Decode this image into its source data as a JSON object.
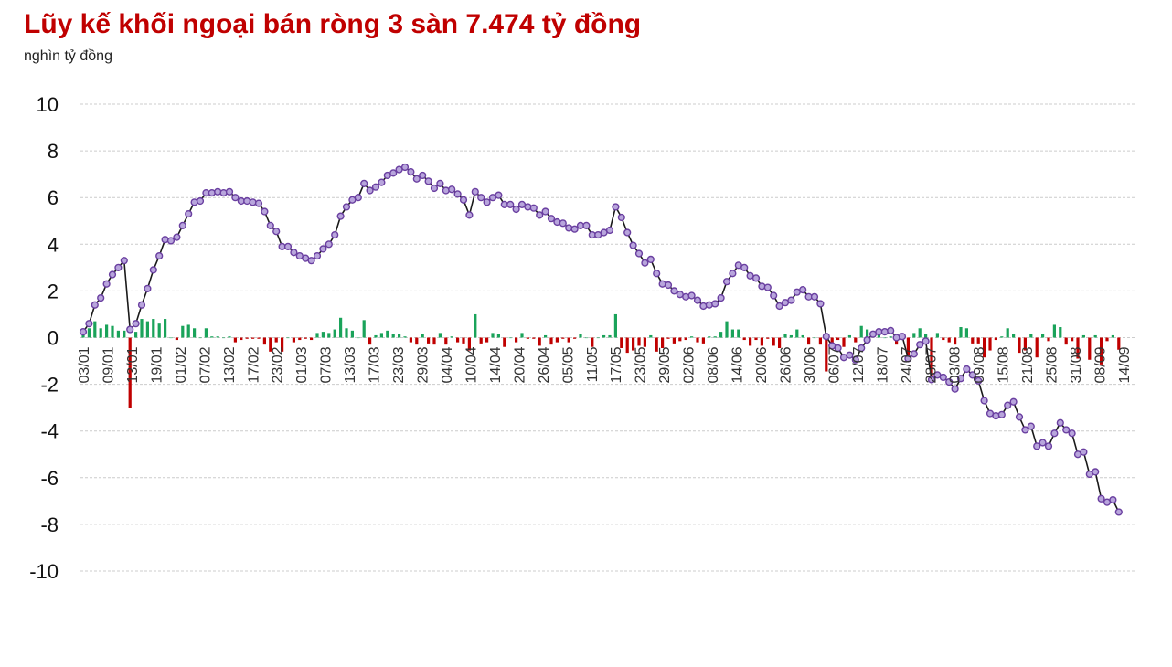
{
  "chart_data": {
    "type": "bar+line",
    "title": "Lũy kế khối ngoại bán ròng 3 sàn 7.474 tỷ đồng",
    "unit_label": "nghìn tỷ đồng",
    "ylim": [
      -10,
      10
    ],
    "yticks": [
      10,
      8,
      6,
      4,
      2,
      0,
      -2,
      -4,
      -6,
      -8,
      -10
    ],
    "grid": true,
    "legend": "none",
    "colors": {
      "line": "#1a1a1a",
      "marker_fill": "#b8a5dc",
      "marker_stroke": "#6a3fa0",
      "bar_positive": "#1aa35a",
      "bar_negative": "#c00000"
    },
    "x_labels": [
      "03/01",
      "09/01",
      "13/01",
      "19/01",
      "01/02",
      "07/02",
      "13/02",
      "17/02",
      "23/02",
      "01/03",
      "07/03",
      "13/03",
      "17/03",
      "23/03",
      "29/03",
      "04/04",
      "10/04",
      "14/04",
      "20/04",
      "26/04",
      "05/05",
      "11/05",
      "17/05",
      "23/05",
      "29/05",
      "02/06",
      "08/06",
      "14/06",
      "20/06",
      "26/06",
      "30/06",
      "06/07",
      "12/07",
      "18/07",
      "24/07",
      "28/07",
      "03/08",
      "09/08",
      "15/08",
      "21/08",
      "25/08",
      "31/08",
      "08/09",
      "14/09"
    ],
    "series": [
      {
        "name": "",
        "type": "line",
        "values": [
          0.25,
          0.6,
          1.4,
          1.7,
          2.3,
          2.7,
          3.0,
          3.3,
          0.35,
          0.6,
          1.4,
          2.1,
          2.9,
          3.5,
          4.2,
          4.15,
          4.3,
          4.8,
          5.3,
          5.8,
          5.85,
          6.2,
          6.2,
          6.25,
          6.2,
          6.25,
          6.0,
          5.85,
          5.85,
          5.8,
          5.75,
          5.4,
          4.8,
          4.55,
          3.9,
          3.9,
          3.65,
          3.5,
          3.4,
          3.3,
          3.5,
          3.8,
          4.0,
          4.4,
          5.2,
          5.6,
          5.9,
          6.0,
          6.6,
          6.3,
          6.45,
          6.65,
          6.95,
          7.05,
          7.2,
          7.3,
          7.1,
          6.8,
          6.95,
          6.7,
          6.4,
          6.6,
          6.3,
          6.35,
          6.15,
          5.9,
          5.25,
          6.25,
          6.0,
          5.8,
          6.0,
          6.1,
          5.7,
          5.7,
          5.5,
          5.7,
          5.6,
          5.55,
          5.25,
          5.4,
          5.1,
          4.95,
          4.9,
          4.7,
          4.65,
          4.8,
          4.8,
          4.4,
          4.4,
          4.5,
          4.6,
          5.6,
          5.15,
          4.5,
          3.95,
          3.6,
          3.2,
          3.35,
          2.75,
          2.3,
          2.25,
          2.0,
          1.85,
          1.75,
          1.8,
          1.6,
          1.35,
          1.4,
          1.45,
          1.7,
          2.4,
          2.75,
          3.1,
          3.0,
          2.65,
          2.55,
          2.2,
          2.15,
          1.8,
          1.35,
          1.5,
          1.6,
          1.95,
          2.05,
          1.75,
          1.75,
          1.45,
          0.05,
          -0.35,
          -0.45,
          -0.85,
          -0.75,
          -0.95,
          -0.45,
          -0.1,
          0.15,
          0.25,
          0.25,
          0.3,
          0.0,
          0.05,
          -0.9,
          -0.7,
          -0.3,
          -0.15,
          -1.8,
          -1.6,
          -1.7,
          -1.9,
          -2.2,
          -1.75,
          -1.35,
          -1.6,
          -1.85,
          -2.7,
          -3.25,
          -3.35,
          -3.3,
          -2.9,
          -2.75,
          -3.4,
          -3.95,
          -3.8,
          -4.65,
          -4.5,
          -4.65,
          -4.1,
          -3.65,
          -3.95,
          -4.1,
          -5.0,
          -4.9,
          -5.85,
          -5.75,
          -6.9,
          -7.05,
          -6.95,
          -7.474
        ]
      },
      {
        "name": "",
        "type": "bar",
        "values": [
          0.1,
          0.4,
          0.7,
          0.4,
          0.55,
          0.5,
          0.3,
          0.3,
          -3.0,
          0.25,
          0.8,
          0.7,
          0.8,
          0.6,
          0.8,
          0.0,
          -0.1,
          0.5,
          0.55,
          0.4,
          0.0,
          0.4,
          0.05,
          0.05,
          0.0,
          0.05,
          -0.2,
          -0.1,
          -0.05,
          -0.05,
          -0.05,
          -0.3,
          -0.6,
          -0.2,
          -0.6,
          0.0,
          -0.2,
          -0.1,
          -0.05,
          -0.1,
          0.2,
          0.25,
          0.2,
          0.35,
          0.85,
          0.4,
          0.3,
          0.0,
          0.75,
          -0.3,
          0.1,
          0.2,
          0.3,
          0.15,
          0.15,
          0.05,
          -0.2,
          -0.3,
          0.15,
          -0.25,
          -0.3,
          0.2,
          -0.3,
          0.05,
          -0.2,
          -0.25,
          -0.55,
          1.0,
          -0.25,
          -0.2,
          0.2,
          0.15,
          -0.4,
          0.0,
          -0.2,
          0.2,
          -0.05,
          -0.05,
          -0.35,
          0.1,
          -0.3,
          -0.2,
          -0.05,
          -0.2,
          -0.05,
          0.15,
          0.0,
          -0.4,
          0.0,
          0.1,
          0.1,
          1.0,
          -0.45,
          -0.65,
          -0.55,
          -0.35,
          -0.4,
          0.1,
          -0.6,
          -0.45,
          -0.05,
          -0.25,
          -0.15,
          -0.1,
          0.05,
          -0.2,
          -0.25,
          0.05,
          0.05,
          0.25,
          0.7,
          0.35,
          0.35,
          -0.1,
          -0.35,
          -0.1,
          -0.35,
          -0.05,
          -0.35,
          -0.45,
          0.15,
          0.1,
          0.35,
          0.1,
          -0.3,
          0.0,
          -0.3,
          -1.45,
          -0.4,
          -0.1,
          -0.4,
          0.1,
          -0.2,
          0.5,
          0.35,
          0.25,
          0.1,
          0.0,
          0.05,
          -0.3,
          0.05,
          -0.95,
          0.2,
          0.4,
          0.15,
          -1.65,
          0.2,
          -0.1,
          -0.2,
          -0.3,
          0.45,
          0.4,
          -0.25,
          -0.25,
          -0.85,
          -0.55,
          -0.1,
          0.05,
          0.4,
          0.15,
          -0.65,
          -0.55,
          0.15,
          -0.85,
          0.15,
          -0.15,
          0.55,
          0.45,
          -0.3,
          -0.15,
          -0.9,
          0.1,
          -0.95,
          0.1,
          -1.15,
          -0.15,
          0.1,
          -0.52
        ]
      }
    ]
  }
}
